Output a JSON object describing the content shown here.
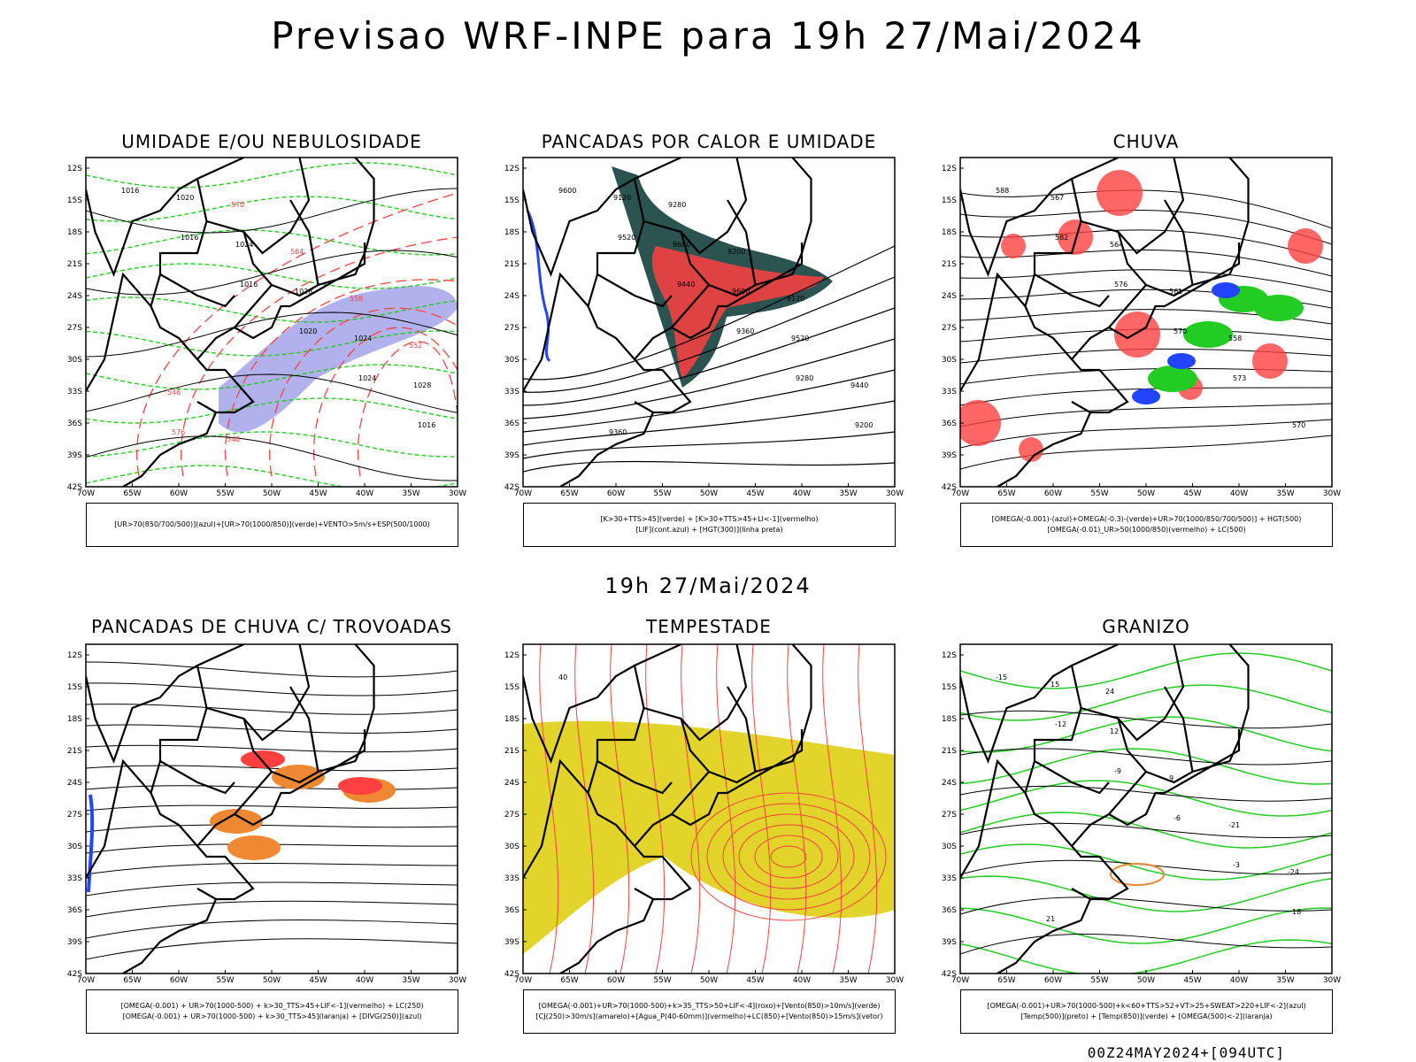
{
  "title": "Previsao WRF-INPE  para 19h 27/Mai/2024",
  "mid_title": "19h 27/Mai/2024",
  "footer": "00Z24MAY2024+[094UTC]",
  "lat_ticks": [
    "12S",
    "15S",
    "18S",
    "21S",
    "24S",
    "27S",
    "30S",
    "33S",
    "36S",
    "39S",
    "42S"
  ],
  "lon_ticks": [
    "70W",
    "65W",
    "60W",
    "55W",
    "50W",
    "45W",
    "40W",
    "35W",
    "30W"
  ],
  "colors": {
    "red": "#ff4040",
    "green": "#22cc22",
    "blue": "#2244ff",
    "purple_fill": "#9d9de8",
    "teal_fill": "#2b5450",
    "yellow_fill": "#e2d42a",
    "orange": "#ee8833"
  },
  "panels": [
    {
      "title": "UMIDADE E/OU NEBULOSIDADE",
      "legend": [
        "[UR>70(850/700/500)](azul)+[UR>70(1000/850)](verde)+VENTO>5m/s+ESP(500/1000)"
      ],
      "labels": [
        "1016",
        "1016",
        "1016",
        "1020",
        "1024",
        "1016",
        "1020",
        "1024",
        "1028",
        "1024",
        "1028",
        "576",
        "570",
        "564",
        "558",
        "552",
        "546",
        "540"
      ]
    },
    {
      "title": "PANCADAS POR CALOR E UMIDADE",
      "legend": [
        "[K>30+TTS>45](verde) + [K>30+TTS>45+LI<-1](vermelho)",
        "[LIF](cont.azul) + [HGT(300)](linha preta)"
      ],
      "labels": [
        "9600",
        "9520",
        "9440",
        "9360",
        "9280",
        "9200",
        "9120",
        "9680",
        "9600",
        "9520",
        "9440",
        "9360",
        "9280",
        "9200",
        "9120"
      ]
    },
    {
      "title": "CHUVA",
      "legend": [
        "[OMEGA(-0.001)-(azul)+OMEGA(-0.3)-(verde)+UR>70(1000/850/700/500)] + HGT(500)",
        "[OMEGA(-0.01)_UR>50(1000/850)(vermelho) + LC(500)"
      ],
      "labels": [
        "588",
        "582",
        "576",
        "570",
        "573",
        "570",
        "567",
        "564",
        "561",
        "558"
      ]
    },
    {
      "title": "PANCADAS DE CHUVA C/ TROVOADAS",
      "legend": [
        "[OMEGA(-0.001) + UR>70(1000-500) + k>30_TTS>45+LIF<-1](vermelho) + LC(250)",
        "[OMEGA(-0.001) + UR>70(1000-500) + k>30_TTS>45](laranja) + [DIVG(250)](azul)"
      ],
      "labels": []
    },
    {
      "title": "TEMPESTADE",
      "legend": [
        "[OMEGA(-0.001)+UR>70(1000-500)+k>35_TTS>50+LIF<-4](roxo)+[Vento(850)>10m/s](verde)",
        "[CJ(250)>30m/s](amarelo)+[Agua_P(40-60mm)](vermelho)+LC(850)+[Vento(850)>15m/s](vetor)"
      ],
      "labels": [
        "40"
      ]
    },
    {
      "title": "GRANIZO",
      "legend": [
        "[OMEGA(-0.001)+UR>70(1000-500)+k<60+TTS>52+VT>25+SWEAT>220+LIF<-2](azul)",
        "[Temp(500)](preto) + [Temp(850)](verde) + [OMEGA(500)<-2](laranja)"
      ],
      "labels": [
        "-15",
        "-12",
        "-9",
        "-6",
        "-3",
        "18",
        "15",
        "12",
        "9",
        "-21",
        "-24",
        "21",
        "24"
      ]
    }
  ]
}
